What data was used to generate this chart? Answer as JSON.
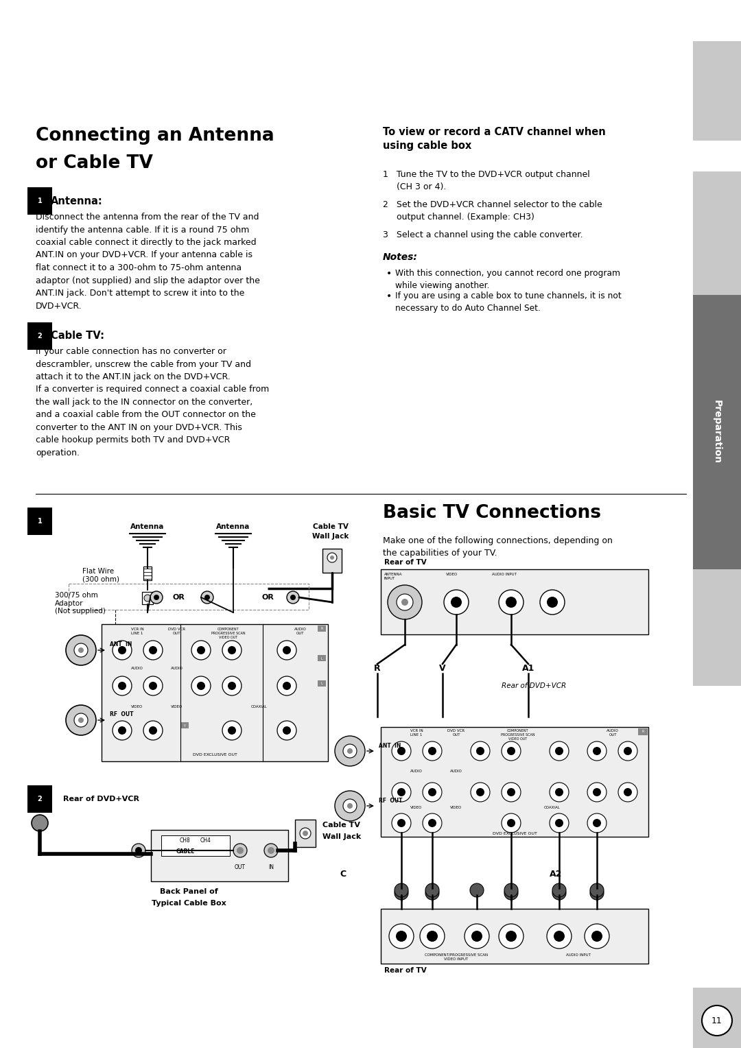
{
  "page_width": 10.8,
  "page_height": 15.28,
  "bg_color": "#ffffff",
  "sidebar_color_light": "#c8c8c8",
  "sidebar_color_dark": "#707070",
  "title1_line1": "Connecting an Antenna",
  "title1_line2": "or Cable TV",
  "sec1_num": "1",
  "sec1_head": "Antenna:",
  "sec1_body": "Disconnect the antenna from the rear of the TV and\nidentify the antenna cable. If it is a round 75 ohm\ncoaxial cable connect it directly to the jack marked\nANT.IN on your DVD+VCR. If your antenna cable is\nflat connect it to a 300-ohm to 75-ohm antenna\nadaptor (not supplied) and slip the adaptor over the\nANT.IN jack. Don't attempt to screw it into to the\nDVD+VCR.",
  "sec2_num": "2",
  "sec2_head": "Cable TV:",
  "sec2_body": "If your cable connection has no converter or\ndescrambler, unscrew the cable from your TV and\nattach it to the ANT.IN jack on the DVD+VCR.\nIf a converter is required connect a coaxial cable from\nthe wall jack to the IN connector on the converter,\nand a coaxial cable from the OUT connector on the\nconverter to the ANT IN on your DVD+VCR. This\ncable hookup permits both TV and DVD+VCR\noperation.",
  "right_head": "To view or record a CATV channel when\nusing cable box",
  "step1": "1   Tune the TV to the DVD+VCR output channel\n     (CH 3 or 4).",
  "step2": "2   Set the DVD+VCR channel selector to the cable\n     output channel. (Example: CH3)",
  "step3": "3   Select a channel using the cable converter.",
  "notes_head": "Notes:",
  "note1": "With this connection, you cannot record one program\nwhile viewing another.",
  "note2": "If you are using a cable box to tune channels, it is not\nnecessary to do Auto Channel Set.",
  "title2": "Basic TV Connections",
  "title2_body": "Make one of the following connections, depending on\nthe capabilities of your TV.",
  "sidebar_text": "Preparation",
  "page_num": "11"
}
